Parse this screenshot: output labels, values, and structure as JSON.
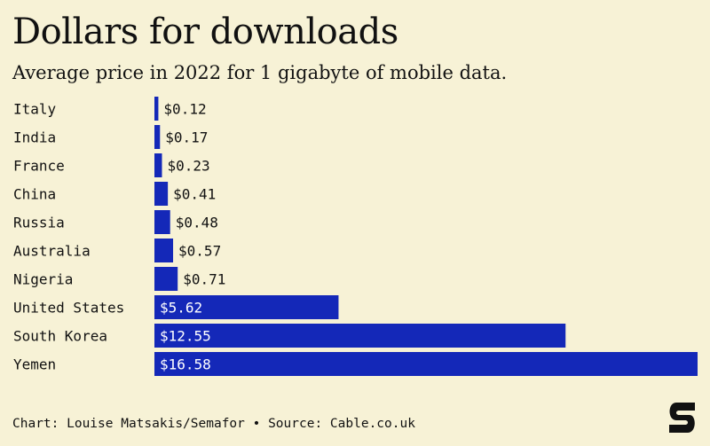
{
  "title": "Dollars for downloads",
  "subtitle": "Average price in 2022 for 1 gigabyte of mobile data.",
  "source": "Chart: Louise Matsakis/Semafor • Source: Cable.co.uk",
  "logo": {
    "icon": "semafor-logo-icon"
  },
  "colors": {
    "bar": "#1428b8",
    "background": "#f7f2d6",
    "text": "#111111",
    "label_on_bar": "#ffffff"
  },
  "chart_data": {
    "type": "bar",
    "orientation": "horizontal",
    "title": "Dollars for downloads",
    "subtitle": "Average price in 2022 for 1 gigabyte of mobile data.",
    "categories": [
      "Italy",
      "India",
      "France",
      "China",
      "Russia",
      "Australia",
      "Nigeria",
      "United States",
      "South Korea",
      "Yemen"
    ],
    "values": [
      0.12,
      0.17,
      0.23,
      0.41,
      0.48,
      0.57,
      0.71,
      5.62,
      12.55,
      16.58
    ],
    "value_labels": [
      "$0.12",
      "$0.17",
      "$0.23",
      "$0.41",
      "$0.48",
      "$0.57",
      "$0.71",
      "$5.62",
      "$12.55",
      "$16.58"
    ],
    "xlim": [
      0,
      16.58
    ],
    "grid": false,
    "legend": "none"
  }
}
